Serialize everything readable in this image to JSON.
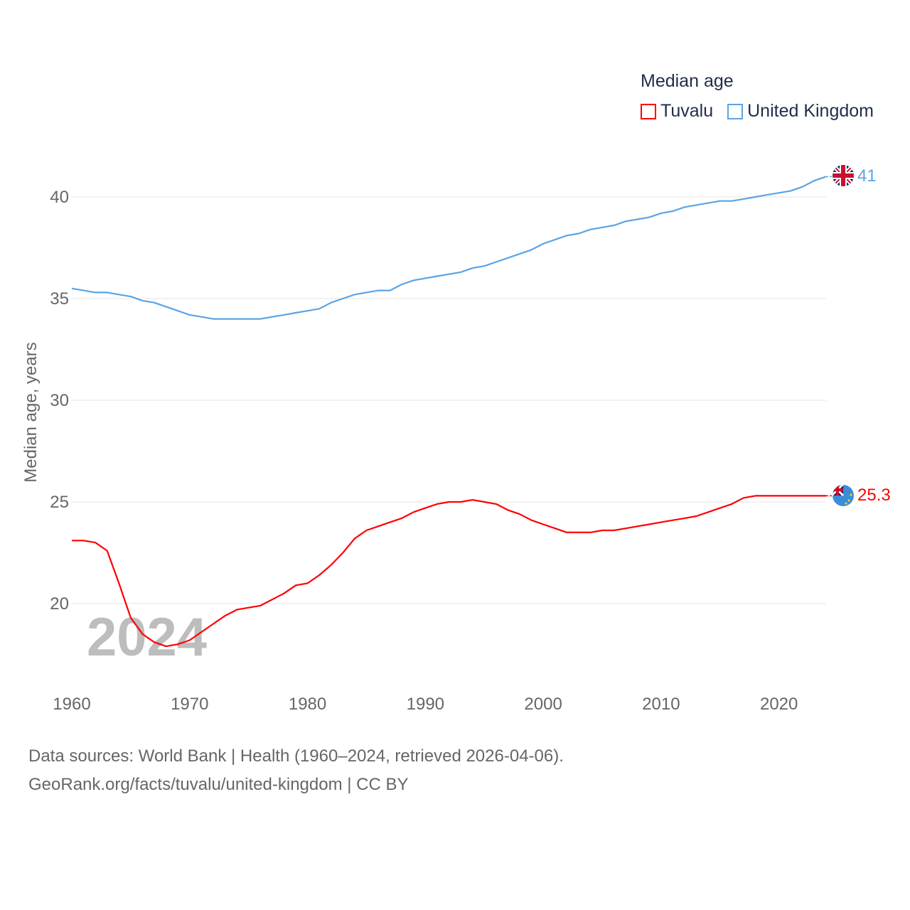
{
  "legend": {
    "title": "Median age",
    "items": [
      {
        "label": "Tuvalu",
        "color": "#ff0000"
      },
      {
        "label": "United Kingdom",
        "color": "#5ba3e6"
      }
    ]
  },
  "watermark_year": "2024",
  "footer": {
    "line1": "Data sources: World Bank | Health (1960–2024, retrieved 2026-04-06).",
    "line2": "GeoRank.org/facts/tuvalu/united-kingdom | CC BY"
  },
  "chart_data": {
    "type": "line",
    "title": "Median age",
    "xlabel": "",
    "ylabel": "Median age, years",
    "xlim": [
      1960,
      2024
    ],
    "ylim": [
      16.5,
      42
    ],
    "xticks": [
      "1960",
      "1970",
      "1980",
      "1990",
      "2000",
      "2010",
      "2020"
    ],
    "yticks": [
      "20",
      "25",
      "30",
      "35",
      "40"
    ],
    "grid": true,
    "legend_position": "top-right",
    "x_start": 1960,
    "series": [
      {
        "name": "Tuvalu",
        "color": "#ff0000",
        "end_label": "25.3",
        "values": [
          23.1,
          23.1,
          23.0,
          22.6,
          21.0,
          19.3,
          18.5,
          18.1,
          17.9,
          18.0,
          18.2,
          18.6,
          19.0,
          19.4,
          19.7,
          19.8,
          19.9,
          20.2,
          20.5,
          20.9,
          21.0,
          21.4,
          21.9,
          22.5,
          23.2,
          23.6,
          23.8,
          24.0,
          24.2,
          24.5,
          24.7,
          24.9,
          25.0,
          25.0,
          25.1,
          25.0,
          24.9,
          24.6,
          24.4,
          24.1,
          23.9,
          23.7,
          23.5,
          23.5,
          23.5,
          23.6,
          23.6,
          23.7,
          23.8,
          23.9,
          24.0,
          24.1,
          24.2,
          24.3,
          24.5,
          24.7,
          24.9,
          25.2,
          25.3,
          25.3,
          25.3,
          25.3,
          25.3,
          25.3,
          25.3
        ]
      },
      {
        "name": "United Kingdom",
        "color": "#5ba3e6",
        "end_label": "41",
        "values": [
          35.5,
          35.4,
          35.3,
          35.3,
          35.2,
          35.1,
          34.9,
          34.8,
          34.6,
          34.4,
          34.2,
          34.1,
          34.0,
          34.0,
          34.0,
          34.0,
          34.0,
          34.1,
          34.2,
          34.3,
          34.4,
          34.5,
          34.8,
          35.0,
          35.2,
          35.3,
          35.4,
          35.4,
          35.7,
          35.9,
          36.0,
          36.1,
          36.2,
          36.3,
          36.5,
          36.6,
          36.8,
          37.0,
          37.2,
          37.4,
          37.7,
          37.9,
          38.1,
          38.2,
          38.4,
          38.5,
          38.6,
          38.8,
          38.9,
          39.0,
          39.2,
          39.3,
          39.5,
          39.6,
          39.7,
          39.8,
          39.8,
          39.9,
          40.0,
          40.1,
          40.2,
          40.3,
          40.5,
          40.8,
          41.0
        ]
      }
    ]
  }
}
